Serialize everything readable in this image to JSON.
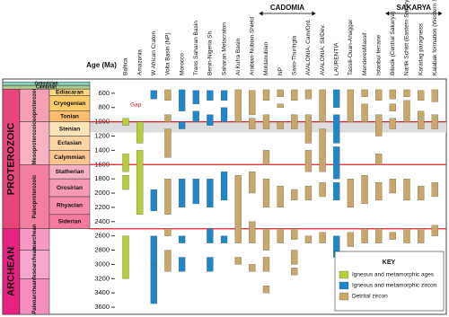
{
  "chart_data": {
    "type": "range",
    "y_label": "Age (Ma)",
    "ylim": [
      400,
      3700
    ],
    "yticks": [
      600,
      800,
      1000,
      1200,
      1400,
      1600,
      1800,
      2000,
      2200,
      2400,
      2600,
      2800,
      3000,
      3200,
      3400,
      3600
    ],
    "boundaries": [
      1000,
      1600,
      2500
    ],
    "boundary_color": "#e0202a",
    "shaded": [
      1000,
      1150
    ],
    "eons": [
      {
        "name": "PROTEROZOIC",
        "from": 541,
        "to": 2500,
        "color": "#e8457a"
      },
      {
        "name": "ARCHEAN",
        "from": 2500,
        "to": 3700,
        "color": "#e8237f"
      }
    ],
    "eras": [
      {
        "name": "Neoproterozoic",
        "from": 541,
        "to": 1000,
        "color": "#f5a0b4"
      },
      {
        "name": "Mesoproterozoic",
        "from": 1000,
        "to": 1600,
        "color": "#f7b3c2"
      },
      {
        "name": "Paleoproterozoic",
        "from": 1600,
        "to": 2500,
        "color": "#f27ea0"
      },
      {
        "name": "Neoarchean",
        "from": 2500,
        "to": 2800,
        "color": "#f69ac4"
      },
      {
        "name": "Mesoarchean",
        "from": 2800,
        "to": 3200,
        "color": "#f5a8cb"
      },
      {
        "name": "Paleoarchean",
        "from": 3200,
        "to": 3700,
        "color": "#f48fbf"
      }
    ],
    "periods": [
      {
        "name": "Ordovician",
        "from": 440,
        "to": 490,
        "color": "#8fd1bf"
      },
      {
        "name": "Cambrian",
        "from": 490,
        "to": 541,
        "color": "#a8c98f"
      },
      {
        "name": "Ediacaran",
        "from": 541,
        "to": 635,
        "color": "#fdd77f"
      },
      {
        "name": "Cryogenian",
        "from": 635,
        "to": 850,
        "color": "#fdcc6a"
      },
      {
        "name": "Tonian",
        "from": 850,
        "to": 1000,
        "color": "#fdbf6f"
      },
      {
        "name": "Stenian",
        "from": 1000,
        "to": 1200,
        "color": "#fde4b8"
      },
      {
        "name": "Ectasian",
        "from": 1200,
        "to": 1400,
        "color": "#fdd4a4"
      },
      {
        "name": "Calymmian",
        "from": 1400,
        "to": 1600,
        "color": "#fdc590"
      },
      {
        "name": "Statherian",
        "from": 1600,
        "to": 1800,
        "color": "#f8b0c4"
      },
      {
        "name": "Orosirian",
        "from": 1800,
        "to": 2050,
        "color": "#f59bb6"
      },
      {
        "name": "Rhyacian",
        "from": 2050,
        "to": 2300,
        "color": "#f58aab"
      },
      {
        "name": "Siderian",
        "from": 2300,
        "to": 2500,
        "color": "#f47aa0"
      }
    ],
    "key_title": "KEY",
    "legend": "bottom-right",
    "kinds": [
      {
        "name": "Igneous and metamorphic ages",
        "color": "#b5cf3a"
      },
      {
        "name": "Igneous and metamorphic zircon",
        "color": "#1f86c8"
      },
      {
        "name": "Detrital zircon",
        "color": "#c8a86a"
      }
    ],
    "groups": [
      {
        "name": "CADOMIA",
        "span": [
          10,
          13
        ]
      },
      {
        "name": "SAKARYA",
        "span": [
          19,
          22
        ]
      }
    ],
    "annotations": [
      {
        "text": "Gap",
        "column": 0,
        "age": 760
      }
    ],
    "columns": [
      {
        "name": "Baltica",
        "bars": [
          [
            950,
            1050,
            0
          ],
          [
            1450,
            1700,
            0
          ],
          [
            1750,
            1950,
            0
          ],
          [
            2600,
            3200,
            0
          ]
        ]
      },
      {
        "name": "Amazonia",
        "bars": [
          [
            1000,
            1300,
            0
          ],
          [
            1400,
            2300,
            0
          ]
        ]
      },
      {
        "name": "W African Craton",
        "bars": [
          [
            560,
            680,
            1
          ],
          [
            1950,
            2250,
            1
          ],
          [
            2600,
            3000,
            1
          ],
          [
            3000,
            3550,
            1
          ]
        ]
      },
      {
        "name": "Volta Basin (NP)",
        "bars": [
          [
            550,
            700,
            2
          ],
          [
            900,
            1000,
            2
          ],
          [
            1100,
            1500,
            2
          ],
          [
            1800,
            2300,
            2
          ],
          [
            2500,
            2600,
            2
          ],
          [
            2800,
            3100,
            2
          ]
        ]
      },
      {
        "name": "Morocco",
        "bars": [
          [
            550,
            850,
            1
          ],
          [
            1000,
            1100,
            1
          ],
          [
            1800,
            2200,
            1
          ],
          [
            2600,
            2700,
            1
          ],
          [
            2900,
            3100,
            1
          ]
        ]
      },
      {
        "name": "Trans Saharan Basin",
        "bars": [
          [
            560,
            750,
            1
          ],
          [
            850,
            1000,
            1
          ],
          [
            1800,
            2150,
            1
          ]
        ]
      },
      {
        "name": "Benin-Nigeria Sh.",
        "bars": [
          [
            560,
            700,
            1
          ],
          [
            900,
            1050,
            1
          ],
          [
            1800,
            2200,
            1
          ],
          [
            2500,
            2700,
            1
          ],
          [
            2900,
            3100,
            1
          ]
        ]
      },
      {
        "name": "Saharan Metacraton",
        "bars": [
          [
            560,
            700,
            1
          ],
          [
            800,
            1000,
            1
          ],
          [
            1700,
            2100,
            1
          ],
          [
            2600,
            2700,
            1
          ]
        ]
      },
      {
        "name": "Al Kufra Basin",
        "bars": [
          [
            550,
            1000,
            2
          ],
          [
            1750,
            2700,
            2
          ],
          [
            2900,
            3000,
            2
          ]
        ]
      },
      {
        "name": "Arabian-Nubian Shield",
        "bars": [
          [
            560,
            900,
            2
          ],
          [
            950,
            1100,
            2
          ],
          [
            1700,
            2000,
            2
          ],
          [
            2400,
            2700,
            2
          ],
          [
            3000,
            3100,
            2
          ]
        ]
      },
      {
        "name": "Moldanubian",
        "bars": [
          [
            550,
            700,
            2
          ],
          [
            900,
            1100,
            2
          ],
          [
            1400,
            1600,
            2
          ],
          [
            1800,
            2200,
            2
          ],
          [
            2500,
            2800,
            2
          ],
          [
            2900,
            3100,
            2
          ],
          [
            3300,
            3400,
            2
          ]
        ]
      },
      {
        "name": "NP",
        "bars": [
          [
            550,
            650,
            2
          ],
          [
            750,
            800,
            2
          ],
          [
            1000,
            1100,
            2
          ],
          [
            1900,
            2200,
            2
          ],
          [
            2500,
            2700,
            2
          ]
        ]
      },
      {
        "name": "Saxo-Thuringia",
        "bars": [
          [
            550,
            700,
            2
          ],
          [
            900,
            1100,
            2
          ],
          [
            1950,
            2100,
            2
          ],
          [
            2500,
            2650,
            2
          ],
          [
            2800,
            3000,
            2
          ],
          [
            3050,
            3150,
            2
          ]
        ]
      },
      {
        "name": "AVALONIA: Cam/Ord.",
        "bars": [
          [
            550,
            680,
            2
          ],
          [
            900,
            1300,
            2
          ],
          [
            1400,
            1700,
            2
          ],
          [
            1900,
            2100,
            2
          ],
          [
            2600,
            2700,
            2
          ]
        ]
      },
      {
        "name": "AVALONIA: Sil/Dev.",
        "bars": [
          [
            550,
            1000,
            2
          ],
          [
            1100,
            1700,
            2
          ],
          [
            1850,
            2050,
            2
          ],
          [
            2550,
            2700,
            2
          ]
        ]
      },
      {
        "name": "LAURENTIA",
        "bars": [
          [
            550,
            800,
            1
          ],
          [
            900,
            1300,
            1
          ],
          [
            1350,
            1800,
            1
          ],
          [
            1850,
            2100,
            1
          ],
          [
            2600,
            2900,
            1
          ]
        ]
      },
      {
        "name": "Tassili-Ouan-Ahaggar",
        "bars": [
          [
            550,
            1000,
            2
          ],
          [
            1800,
            2200,
            2
          ],
          [
            2550,
            2750,
            2
          ],
          [
            2900,
            3100,
            2
          ]
        ]
      },
      {
        "name": "MenderesMassif",
        "bars": [
          [
            550,
            650,
            2
          ],
          [
            750,
            1000,
            2
          ],
          [
            1750,
            2150,
            2
          ],
          [
            2500,
            2700,
            2
          ],
          [
            2950,
            3050,
            2
          ]
        ]
      },
      {
        "name": "Istanbul terrane",
        "bars": [
          [
            550,
            700,
            2
          ],
          [
            900,
            1200,
            2
          ],
          [
            1450,
            1600,
            2
          ],
          [
            1850,
            2100,
            2
          ],
          [
            2500,
            2700,
            2
          ]
        ]
      },
      {
        "name": "Bilecik (Central Sakarya)",
        "bars": [
          [
            550,
            680,
            2
          ],
          [
            750,
            850,
            2
          ],
          [
            950,
            1100,
            2
          ],
          [
            1800,
            2000,
            2
          ],
          [
            2550,
            2650,
            2
          ]
        ]
      },
      {
        "name": "Narlik Schist (Eastern Sakarya)",
        "bars": [
          [
            550,
            650,
            2
          ],
          [
            700,
            1000,
            2
          ],
          [
            1800,
            2100,
            2
          ],
          [
            2500,
            2700,
            2
          ],
          [
            3000,
            3200,
            2
          ]
        ]
      },
      {
        "name": "Karadag paragneiss",
        "bars": [
          [
            560,
            700,
            2
          ],
          [
            850,
            1100,
            2
          ],
          [
            1900,
            2100,
            2
          ],
          [
            2500,
            2700,
            2
          ],
          [
            3400,
            3450,
            2
          ]
        ]
      },
      {
        "name": "Kalabak formation (Western Sakarya)",
        "bars": [
          [
            550,
            720,
            2
          ],
          [
            900,
            1100,
            2
          ],
          [
            1850,
            2050,
            2
          ],
          [
            2450,
            2600,
            2
          ],
          [
            3500,
            3550,
            2
          ]
        ]
      }
    ]
  }
}
